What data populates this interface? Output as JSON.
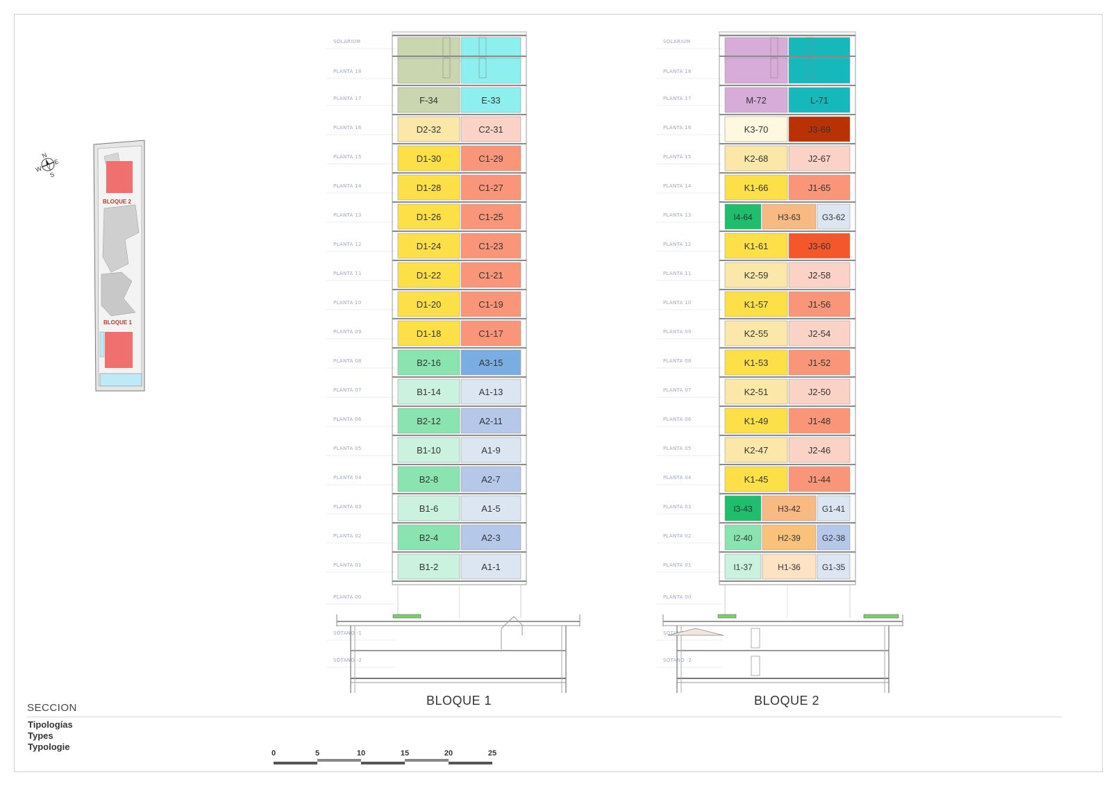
{
  "footer": {
    "title": "SECCION",
    "types": [
      "Tipologías",
      "Types",
      "Typologie"
    ]
  },
  "scale_bar": {
    "ticks": [
      "0",
      "5",
      "10",
      "15",
      "20",
      "25"
    ]
  },
  "site_plan": {
    "labels": [
      "BLOQUE 2",
      "BLOQUE 1"
    ],
    "compass": [
      "N",
      "E",
      "S",
      "W"
    ]
  },
  "floors": [
    "SOLARIUM",
    "PLANTA 18",
    "PLANTA 17",
    "PLANTA 16",
    "PLANTA 15",
    "PLANTA 14",
    "PLANTA 13",
    "PLANTA 12",
    "PLANTA 11",
    "PLANTA 10",
    "PLANTA 09",
    "PLANTA 08",
    "PLANTA 07",
    "PLANTA 06",
    "PLANTA 05",
    "PLANTA 04",
    "PLANTA 03",
    "PLANTA 02",
    "PLANTA 01",
    "PLANTA 00",
    "SÓTANO -1",
    "SÓTANO -2"
  ],
  "blocks": [
    {
      "title": "BLOQUE 1",
      "rows": [
        [
          {
            "label": "",
            "color": "#c9d6b0"
          },
          {
            "label": "",
            "color": "#8ef0ee"
          }
        ],
        [
          {
            "label": "",
            "color": "#c9d6b0"
          },
          {
            "label": "",
            "color": "#8ef0ee"
          }
        ],
        [
          {
            "label": "F-34",
            "color": "#c9d6b0"
          },
          {
            "label": "E-33",
            "color": "#8ef0ee"
          }
        ],
        [
          {
            "label": "D2-32",
            "color": "#fbe7a8"
          },
          {
            "label": "C2-31",
            "color": "#fbd2c6"
          }
        ],
        [
          {
            "label": "D1-30",
            "color": "#fde047"
          },
          {
            "label": "C1-29",
            "color": "#f99679"
          }
        ],
        [
          {
            "label": "D1-28",
            "color": "#fde047"
          },
          {
            "label": "C1-27",
            "color": "#f99679"
          }
        ],
        [
          {
            "label": "D1-26",
            "color": "#fde047"
          },
          {
            "label": "C1-25",
            "color": "#f99679"
          }
        ],
        [
          {
            "label": "D1-24",
            "color": "#fde047"
          },
          {
            "label": "C1-23",
            "color": "#f99679"
          }
        ],
        [
          {
            "label": "D1-22",
            "color": "#fde047"
          },
          {
            "label": "C1-21",
            "color": "#f99679"
          }
        ],
        [
          {
            "label": "D1-20",
            "color": "#fde047"
          },
          {
            "label": "C1-19",
            "color": "#f99679"
          }
        ],
        [
          {
            "label": "D1-18",
            "color": "#fde047"
          },
          {
            "label": "C1-17",
            "color": "#f99679"
          }
        ],
        [
          {
            "label": "B2-16",
            "color": "#8ae4b0"
          },
          {
            "label": "A3-15",
            "color": "#7aaee3"
          }
        ],
        [
          {
            "label": "B1-14",
            "color": "#cbf2de"
          },
          {
            "label": "A1-13",
            "color": "#dce6f3"
          }
        ],
        [
          {
            "label": "B2-12",
            "color": "#8ae4b0"
          },
          {
            "label": "A2-11",
            "color": "#b5c8ea"
          }
        ],
        [
          {
            "label": "B1-10",
            "color": "#cbf2de"
          },
          {
            "label": "A1-9",
            "color": "#dce6f3"
          }
        ],
        [
          {
            "label": "B2-8",
            "color": "#8ae4b0"
          },
          {
            "label": "A2-7",
            "color": "#b5c8ea"
          }
        ],
        [
          {
            "label": "B1-6",
            "color": "#cbf2de"
          },
          {
            "label": "A1-5",
            "color": "#dce6f3"
          }
        ],
        [
          {
            "label": "B2-4",
            "color": "#8ae4b0"
          },
          {
            "label": "A2-3",
            "color": "#b5c8ea"
          }
        ],
        [
          {
            "label": "B1-2",
            "color": "#cbf2de"
          },
          {
            "label": "A1-1",
            "color": "#dce6f3"
          }
        ]
      ]
    },
    {
      "title": "BLOQUE 2",
      "rows": [
        [
          {
            "label": "",
            "color": "#d8acd8"
          },
          {
            "label": "",
            "color": "#15b9bc"
          }
        ],
        [
          {
            "label": "",
            "color": "#d8acd8"
          },
          {
            "label": "",
            "color": "#15b9bc"
          }
        ],
        [
          {
            "label": "M-72",
            "color": "#d8acd8"
          },
          {
            "label": "L-71",
            "color": "#15b9bc"
          }
        ],
        [
          {
            "label": "K3-70",
            "color": "#fef8e0"
          },
          {
            "label": "J3-69",
            "color": "#b83206"
          }
        ],
        [
          {
            "label": "K2-68",
            "color": "#fbe7a8"
          },
          {
            "label": "J2-67",
            "color": "#fbd2c6"
          }
        ],
        [
          {
            "label": "K1-66",
            "color": "#fde047"
          },
          {
            "label": "J1-65",
            "color": "#f99679"
          }
        ],
        [
          {
            "label": "I4-64",
            "color": "#1fbe6c"
          },
          {
            "label": "H3-63",
            "color": "#f8b982"
          },
          {
            "label": "G3-62",
            "color": "#dce6f3"
          }
        ],
        [
          {
            "label": "K1-61",
            "color": "#fde047"
          },
          {
            "label": "J3-60",
            "color": "#f4572c"
          }
        ],
        [
          {
            "label": "K2-59",
            "color": "#fbe7a8"
          },
          {
            "label": "J2-58",
            "color": "#fbd2c6"
          }
        ],
        [
          {
            "label": "K1-57",
            "color": "#fde047"
          },
          {
            "label": "J1-56",
            "color": "#f99679"
          }
        ],
        [
          {
            "label": "K2-55",
            "color": "#fbe7a8"
          },
          {
            "label": "J2-54",
            "color": "#fbd2c6"
          }
        ],
        [
          {
            "label": "K1-53",
            "color": "#fde047"
          },
          {
            "label": "J1-52",
            "color": "#f99679"
          }
        ],
        [
          {
            "label": "K2-51",
            "color": "#fbe7a8"
          },
          {
            "label": "J2-50",
            "color": "#fbd2c6"
          }
        ],
        [
          {
            "label": "K1-49",
            "color": "#fde047"
          },
          {
            "label": "J1-48",
            "color": "#f99679"
          }
        ],
        [
          {
            "label": "K2-47",
            "color": "#fbe7a8"
          },
          {
            "label": "J2-46",
            "color": "#fbd2c6"
          }
        ],
        [
          {
            "label": "K1-45",
            "color": "#fde047"
          },
          {
            "label": "J1-44",
            "color": "#f99679"
          }
        ],
        [
          {
            "label": "I3-43",
            "color": "#1fbe6c"
          },
          {
            "label": "H3-42",
            "color": "#f8b982"
          },
          {
            "label": "G1-41",
            "color": "#dce6f3"
          }
        ],
        [
          {
            "label": "I2-40",
            "color": "#8ae4b0"
          },
          {
            "label": "H2-39",
            "color": "#f9c17a"
          },
          {
            "label": "G2-38",
            "color": "#b5c8ea"
          }
        ],
        [
          {
            "label": "I1-37",
            "color": "#cbf2de"
          },
          {
            "label": "H1-36",
            "color": "#fde3c4"
          },
          {
            "label": "G1-35",
            "color": "#dce6f3"
          }
        ]
      ]
    }
  ]
}
